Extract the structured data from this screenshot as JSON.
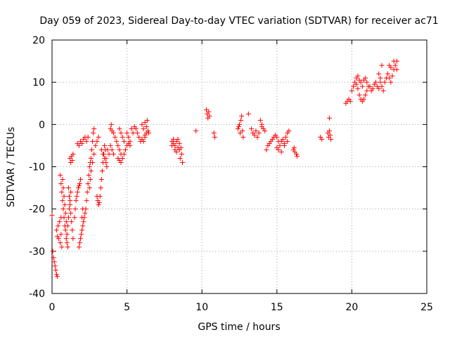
{
  "chart_data": {
    "type": "scatter",
    "title": "Day 059 of 2023, Sidereal Day-to-day VTEC variation (SDTVAR) for receiver ac71",
    "xlabel": "GPS time / hours",
    "ylabel": "SDTVAR / TECUs",
    "xlim": [
      0,
      25
    ],
    "ylim": [
      -40,
      20
    ],
    "xticks": [
      0,
      5,
      10,
      15,
      20,
      25
    ],
    "yticks": [
      -40,
      -30,
      -20,
      -10,
      0,
      10,
      20
    ],
    "xtick_labels": [
      "0",
      "5",
      "10",
      "15",
      "20",
      "25"
    ],
    "ytick_labels": [
      "-40",
      "-30",
      "-20",
      "-10",
      "0",
      "10",
      "20"
    ],
    "grid": true,
    "marker": "+",
    "color": "#ff0000",
    "series": [
      {
        "name": "SDTVAR",
        "points": [
          [
            0.0,
            -21.5
          ],
          [
            0.05,
            -30
          ],
          [
            0.1,
            -31.5
          ],
          [
            0.15,
            -32.5
          ],
          [
            0.2,
            -33.5
          ],
          [
            0.25,
            -34.5
          ],
          [
            0.3,
            -35.5
          ],
          [
            0.35,
            -36
          ],
          [
            0.3,
            -25
          ],
          [
            0.35,
            -26.5
          ],
          [
            0.4,
            -24
          ],
          [
            0.45,
            -27
          ],
          [
            0.5,
            -23
          ],
          [
            0.55,
            -28
          ],
          [
            0.6,
            -22
          ],
          [
            0.6,
            -26
          ],
          [
            0.65,
            -29
          ],
          [
            0.55,
            -12
          ],
          [
            0.6,
            -14
          ],
          [
            0.65,
            -16
          ],
          [
            0.7,
            -18
          ],
          [
            0.75,
            -20
          ],
          [
            0.8,
            -22
          ],
          [
            0.85,
            -24
          ],
          [
            0.7,
            -13
          ],
          [
            0.75,
            -15
          ],
          [
            0.8,
            -17
          ],
          [
            0.85,
            -19
          ],
          [
            0.9,
            -21
          ],
          [
            0.95,
            -23
          ],
          [
            0.9,
            -25
          ],
          [
            0.95,
            -27
          ],
          [
            1.0,
            -28
          ],
          [
            1.05,
            -29
          ],
          [
            1.0,
            -26
          ],
          [
            1.05,
            -24
          ],
          [
            1.1,
            -22
          ],
          [
            1.15,
            -20
          ],
          [
            1.2,
            -18
          ],
          [
            1.25,
            -16
          ],
          [
            1.1,
            -15
          ],
          [
            1.15,
            -17
          ],
          [
            1.2,
            -19
          ],
          [
            1.25,
            -21
          ],
          [
            1.3,
            -23
          ],
          [
            1.35,
            -25
          ],
          [
            1.4,
            -27
          ],
          [
            1.2,
            -8
          ],
          [
            1.25,
            -9
          ],
          [
            1.3,
            -7.5
          ],
          [
            1.35,
            -8.5
          ],
          [
            1.4,
            -7
          ],
          [
            1.5,
            -22
          ],
          [
            1.55,
            -20
          ],
          [
            1.6,
            -18
          ],
          [
            1.65,
            -17
          ],
          [
            1.7,
            -16
          ],
          [
            1.75,
            -15
          ],
          [
            1.8,
            -14.5
          ],
          [
            1.85,
            -14
          ],
          [
            1.9,
            -13
          ],
          [
            1.7,
            -4.5
          ],
          [
            1.8,
            -5
          ],
          [
            1.9,
            -4
          ],
          [
            2.0,
            -4.5
          ],
          [
            2.1,
            -3.5
          ],
          [
            2.2,
            -3
          ],
          [
            2.3,
            -4
          ],
          [
            2.4,
            -3
          ],
          [
            1.8,
            -29
          ],
          [
            1.85,
            -28
          ],
          [
            1.9,
            -27
          ],
          [
            1.95,
            -26
          ],
          [
            2.0,
            -25
          ],
          [
            2.05,
            -24
          ],
          [
            2.1,
            -23
          ],
          [
            2.15,
            -22
          ],
          [
            2.2,
            -21
          ],
          [
            2.25,
            -20
          ],
          [
            2.0,
            -22
          ],
          [
            2.05,
            -20
          ],
          [
            2.3,
            -18
          ],
          [
            2.35,
            -16
          ],
          [
            2.4,
            -14
          ],
          [
            2.45,
            -12
          ],
          [
            2.5,
            -10
          ],
          [
            2.55,
            -9
          ],
          [
            2.6,
            -8
          ],
          [
            2.65,
            -6
          ],
          [
            2.7,
            -4
          ],
          [
            2.75,
            -2
          ],
          [
            2.8,
            -1
          ],
          [
            2.5,
            -15
          ],
          [
            2.55,
            -13
          ],
          [
            2.6,
            -11
          ],
          [
            2.7,
            -9
          ],
          [
            2.8,
            -7
          ],
          [
            2.9,
            -5
          ],
          [
            3.0,
            -4
          ],
          [
            3.1,
            -3
          ],
          [
            3.0,
            -17
          ],
          [
            3.05,
            -18
          ],
          [
            3.1,
            -19
          ],
          [
            3.15,
            -18.5
          ],
          [
            3.2,
            -17
          ],
          [
            3.25,
            -15
          ],
          [
            3.3,
            -13
          ],
          [
            3.35,
            -11
          ],
          [
            3.4,
            -9
          ],
          [
            3.45,
            -7
          ],
          [
            3.5,
            -5
          ],
          [
            3.55,
            -6
          ],
          [
            3.6,
            -8
          ],
          [
            3.65,
            -10
          ],
          [
            3.3,
            -6
          ],
          [
            3.4,
            -7
          ],
          [
            3.5,
            -8
          ],
          [
            3.6,
            -9
          ],
          [
            3.7,
            -6
          ],
          [
            3.8,
            -7
          ],
          [
            3.9,
            -5
          ],
          [
            4.0,
            -6
          ],
          [
            4.1,
            -7
          ],
          [
            3.9,
            -1
          ],
          [
            3.95,
            0
          ],
          [
            4.0,
            -1.5
          ],
          [
            4.1,
            -2
          ],
          [
            4.2,
            -3
          ],
          [
            4.3,
            -4
          ],
          [
            4.4,
            -5
          ],
          [
            4.5,
            -6
          ],
          [
            4.6,
            -7
          ],
          [
            4.4,
            -8
          ],
          [
            4.5,
            -8.5
          ],
          [
            4.6,
            -9
          ],
          [
            4.7,
            -8
          ],
          [
            4.8,
            -7
          ],
          [
            4.9,
            -6
          ],
          [
            5.0,
            -5
          ],
          [
            5.1,
            -4.5
          ],
          [
            5.2,
            -5
          ],
          [
            4.5,
            -1
          ],
          [
            4.6,
            -2
          ],
          [
            4.7,
            -3
          ],
          [
            4.8,
            -4
          ],
          [
            5.0,
            -2
          ],
          [
            5.1,
            -3
          ],
          [
            5.2,
            -4
          ],
          [
            5.3,
            -1
          ],
          [
            5.4,
            -2
          ],
          [
            5.5,
            -0.5
          ],
          [
            5.6,
            -1
          ],
          [
            5.7,
            -2
          ],
          [
            5.8,
            -3
          ],
          [
            5.9,
            -4
          ],
          [
            6.0,
            -3.5
          ],
          [
            6.1,
            -4
          ],
          [
            6.2,
            -3
          ],
          [
            6.3,
            -2
          ],
          [
            6.0,
            0
          ],
          [
            6.1,
            -1
          ],
          [
            6.2,
            0.5
          ],
          [
            6.3,
            -0.5
          ],
          [
            6.4,
            -1.5
          ],
          [
            6.45,
            -2
          ],
          [
            6.35,
            1
          ],
          [
            6.2,
            -2.5
          ],
          [
            8.0,
            -4
          ],
          [
            8.1,
            -4.5
          ],
          [
            8.2,
            -5
          ],
          [
            8.3,
            -4
          ],
          [
            8.4,
            -3.5
          ],
          [
            8.5,
            -4.5
          ],
          [
            8.6,
            -5.5
          ],
          [
            8.65,
            -7
          ],
          [
            8.7,
            -9
          ],
          [
            8.2,
            -6
          ],
          [
            8.3,
            -6.5
          ],
          [
            8.4,
            -5.5
          ],
          [
            8.5,
            -6
          ],
          [
            8.55,
            -8
          ],
          [
            8.1,
            -3.5
          ],
          [
            8.0,
            -5
          ],
          [
            9.6,
            -1.5
          ],
          [
            10.3,
            3.5
          ],
          [
            10.35,
            2.5
          ],
          [
            10.4,
            1.5
          ],
          [
            10.45,
            3
          ],
          [
            10.5,
            2
          ],
          [
            10.8,
            -2
          ],
          [
            10.85,
            -3
          ],
          [
            12.4,
            -1
          ],
          [
            12.5,
            0
          ],
          [
            12.6,
            1
          ],
          [
            12.65,
            2
          ],
          [
            12.7,
            -1.5
          ],
          [
            12.75,
            -3
          ],
          [
            12.55,
            -2
          ],
          [
            12.45,
            -0.5
          ],
          [
            13.1,
            2.5
          ],
          [
            13.3,
            -1
          ],
          [
            13.4,
            -2
          ],
          [
            13.5,
            -2.5
          ],
          [
            13.6,
            -1.5
          ],
          [
            13.7,
            -3
          ],
          [
            13.8,
            -2
          ],
          [
            13.9,
            1
          ],
          [
            14.0,
            0
          ],
          [
            14.1,
            -1
          ],
          [
            14.2,
            -1.5
          ],
          [
            14.0,
            -0.5
          ],
          [
            14.3,
            -6
          ],
          [
            14.4,
            -5
          ],
          [
            14.5,
            -4.5
          ],
          [
            14.6,
            -4
          ],
          [
            14.7,
            -3.5
          ],
          [
            14.8,
            -3
          ],
          [
            14.9,
            -2.5
          ],
          [
            15.0,
            -3
          ],
          [
            15.1,
            -4
          ],
          [
            15.2,
            -5
          ],
          [
            15.3,
            -4
          ],
          [
            15.4,
            -3.5
          ],
          [
            15.5,
            -4.5
          ],
          [
            15.6,
            -3
          ],
          [
            15.7,
            -2
          ],
          [
            15.8,
            -1.5
          ],
          [
            15.0,
            -5.5
          ],
          [
            15.1,
            -6
          ],
          [
            15.3,
            -6.5
          ],
          [
            15.5,
            -5
          ],
          [
            15.7,
            -4
          ],
          [
            16.1,
            -6
          ],
          [
            16.2,
            -6.5
          ],
          [
            16.3,
            -7
          ],
          [
            16.35,
            -7.5
          ],
          [
            16.15,
            -5.5
          ],
          [
            17.9,
            -3
          ],
          [
            18.0,
            -3.5
          ],
          [
            18.4,
            -2
          ],
          [
            18.45,
            -3
          ],
          [
            18.5,
            -1.5
          ],
          [
            18.55,
            -2.5
          ],
          [
            18.6,
            -3.5
          ],
          [
            18.5,
            1.5
          ],
          [
            19.6,
            5
          ],
          [
            19.7,
            5.5
          ],
          [
            19.8,
            6
          ],
          [
            19.9,
            5.5
          ],
          [
            20.0,
            8
          ],
          [
            20.1,
            9
          ],
          [
            20.2,
            10
          ],
          [
            20.3,
            9.5
          ],
          [
            20.4,
            8.5
          ],
          [
            20.5,
            7
          ],
          [
            20.6,
            6
          ],
          [
            20.7,
            5.5
          ],
          [
            20.8,
            6
          ],
          [
            20.9,
            7
          ],
          [
            21.0,
            8
          ],
          [
            21.1,
            9
          ],
          [
            20.3,
            11
          ],
          [
            20.4,
            11.5
          ],
          [
            20.5,
            10.5
          ],
          [
            20.6,
            10
          ],
          [
            20.7,
            9
          ],
          [
            20.8,
            10.5
          ],
          [
            20.9,
            11
          ],
          [
            21.0,
            10
          ],
          [
            21.2,
            9
          ],
          [
            21.3,
            8
          ],
          [
            21.4,
            8.5
          ],
          [
            21.5,
            9.5
          ],
          [
            21.6,
            10
          ],
          [
            21.7,
            9
          ],
          [
            21.8,
            8.5
          ],
          [
            21.9,
            10
          ],
          [
            22.0,
            9
          ],
          [
            22.1,
            8
          ],
          [
            22.2,
            10
          ],
          [
            22.3,
            11
          ],
          [
            22.4,
            12
          ],
          [
            22.5,
            11
          ],
          [
            22.6,
            10
          ],
          [
            22.7,
            11.5
          ],
          [
            22.8,
            13
          ],
          [
            22.9,
            14
          ],
          [
            23.0,
            13
          ],
          [
            22.5,
            14
          ],
          [
            22.6,
            13.5
          ],
          [
            22.0,
            14
          ],
          [
            21.8,
            12
          ],
          [
            21.9,
            11
          ],
          [
            22.8,
            15
          ],
          [
            23.0,
            15
          ]
        ]
      }
    ]
  }
}
